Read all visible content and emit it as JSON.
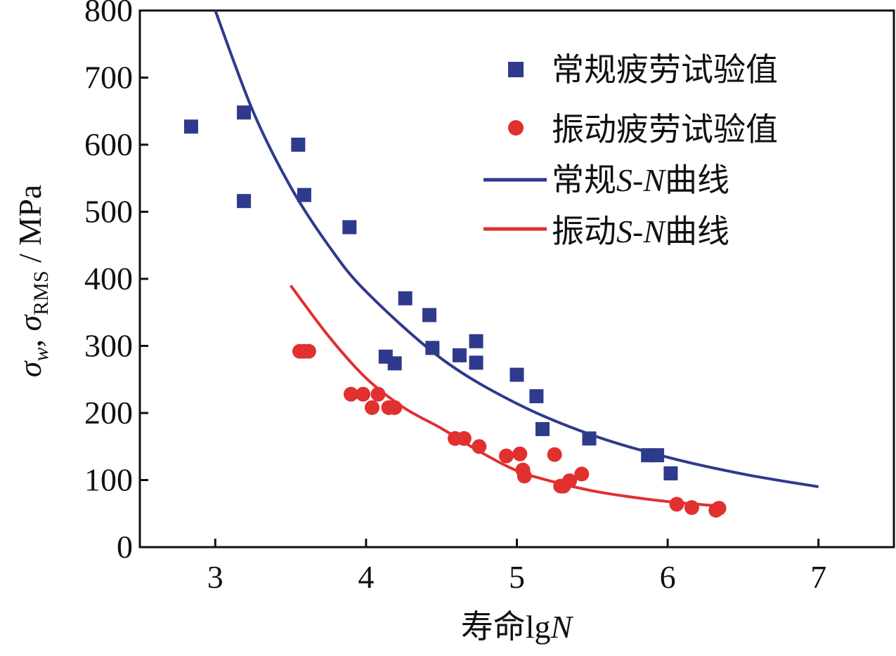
{
  "chart_data": {
    "type": "scatter",
    "title": "",
    "xlabel": "寿命lgN",
    "xlabel_parts": {
      "prefix": "寿命lg",
      "var": "N"
    },
    "ylabel": "σw, σRMS / MPa",
    "ylabel_parts": {
      "sym1": "σ",
      "sub1": "w",
      "sep": ", ",
      "sym2": "σ",
      "sub2": "RMS",
      "unit": " / MPa"
    },
    "xlim": [
      2.5,
      7.5
    ],
    "ylim": [
      0,
      800
    ],
    "xticks": [
      "3",
      "4",
      "5",
      "6",
      "7"
    ],
    "yticks": [
      "0",
      "100",
      "200",
      "300",
      "400",
      "500",
      "600",
      "700",
      "800"
    ],
    "grid": false,
    "legend_position": "top-right",
    "colors": {
      "blue": "#2e3a8c",
      "red": "#e03030"
    },
    "series": [
      {
        "name": "常规疲劳试验值",
        "kind": "square",
        "color": "#2e3a8c",
        "points": [
          [
            2.84,
            627
          ],
          [
            3.19,
            648
          ],
          [
            3.19,
            516
          ],
          [
            3.55,
            600
          ],
          [
            3.59,
            525
          ],
          [
            3.89,
            477
          ],
          [
            4.26,
            371
          ],
          [
            4.42,
            346
          ],
          [
            4.44,
            297
          ],
          [
            4.13,
            284
          ],
          [
            4.19,
            274
          ],
          [
            4.62,
            286
          ],
          [
            4.73,
            307
          ],
          [
            4.73,
            275
          ],
          [
            5.0,
            257
          ],
          [
            5.13,
            225
          ],
          [
            5.17,
            176
          ],
          [
            5.48,
            162
          ],
          [
            5.87,
            137
          ],
          [
            5.93,
            137
          ],
          [
            6.02,
            110
          ]
        ]
      },
      {
        "name": "振动疲劳试验值",
        "kind": "circle",
        "color": "#e03030",
        "points": [
          [
            3.56,
            292
          ],
          [
            3.59,
            292
          ],
          [
            3.62,
            292
          ],
          [
            3.9,
            228
          ],
          [
            3.98,
            228
          ],
          [
            4.08,
            228
          ],
          [
            4.04,
            208
          ],
          [
            4.15,
            208
          ],
          [
            4.19,
            208
          ],
          [
            4.59,
            162
          ],
          [
            4.65,
            162
          ],
          [
            4.75,
            150
          ],
          [
            4.93,
            136
          ],
          [
            5.02,
            139
          ],
          [
            5.04,
            115
          ],
          [
            5.05,
            106
          ],
          [
            5.25,
            138
          ],
          [
            5.29,
            91
          ],
          [
            5.31,
            91
          ],
          [
            5.35,
            99
          ],
          [
            5.43,
            109
          ],
          [
            6.06,
            64
          ],
          [
            6.16,
            59
          ],
          [
            6.32,
            55
          ],
          [
            6.34,
            58
          ]
        ]
      },
      {
        "name": "常规S-N曲线",
        "name_parts": {
          "pre": "常规",
          "s": "S",
          "dash": "-",
          "n": "N",
          "post": "曲线"
        },
        "kind": "line",
        "color": "#2e3a8c",
        "points": [
          [
            3,
            800
          ],
          [
            3.25,
            650
          ],
          [
            3.5,
            537
          ],
          [
            3.75,
            450
          ],
          [
            4,
            381
          ],
          [
            4.5,
            281
          ],
          [
            5,
            214
          ],
          [
            5.5,
            167
          ],
          [
            6,
            134
          ],
          [
            6.5,
            109
          ],
          [
            7,
            90
          ]
        ]
      },
      {
        "name": "振动S-N曲线",
        "name_parts": {
          "pre": "振动",
          "s": "S",
          "dash": "-",
          "n": "N",
          "post": "曲线"
        },
        "kind": "line",
        "color": "#e03030",
        "points": [
          [
            3.5,
            390
          ],
          [
            3.75,
            315
          ],
          [
            4,
            252
          ],
          [
            4.25,
            208
          ],
          [
            4.5,
            177
          ],
          [
            4.75,
            143
          ],
          [
            5,
            114
          ],
          [
            5.25,
            97
          ],
          [
            5.5,
            84
          ],
          [
            5.75,
            75
          ],
          [
            6,
            68
          ],
          [
            6.3,
            62
          ]
        ]
      }
    ]
  }
}
